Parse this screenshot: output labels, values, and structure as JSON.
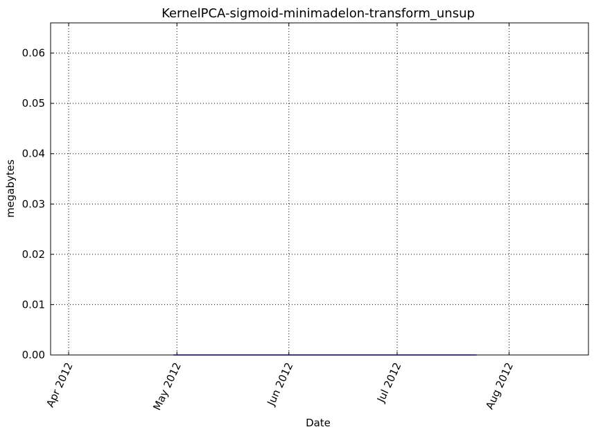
{
  "chart_data": {
    "type": "line",
    "title": "KernelPCA-sigmoid-minimadelon-transform_unsup",
    "xlabel": "Date",
    "ylabel": "megabytes",
    "x_ticks": [
      {
        "date": "2012-04-01",
        "label": "Apr 2012"
      },
      {
        "date": "2012-05-01",
        "label": "May 2012"
      },
      {
        "date": "2012-06-01",
        "label": "Jun 2012"
      },
      {
        "date": "2012-07-01",
        "label": "Jul 2012"
      },
      {
        "date": "2012-08-01",
        "label": "Aug 2012"
      }
    ],
    "y_ticks": [
      {
        "value": 0.0,
        "label": "0.00"
      },
      {
        "value": 0.01,
        "label": "0.01"
      },
      {
        "value": 0.02,
        "label": "0.02"
      },
      {
        "value": 0.03,
        "label": "0.03"
      },
      {
        "value": 0.04,
        "label": "0.04"
      },
      {
        "value": 0.05,
        "label": "0.05"
      },
      {
        "value": 0.06,
        "label": "0.06"
      }
    ],
    "xlim": [
      "2012-03-27",
      "2012-08-23"
    ],
    "ylim": [
      0,
      0.066
    ],
    "grid": true,
    "series": [
      {
        "color": "#0000ff",
        "x": [
          "2012-04-30",
          "2012-07-23"
        ],
        "y": [
          0,
          0
        ]
      }
    ]
  }
}
